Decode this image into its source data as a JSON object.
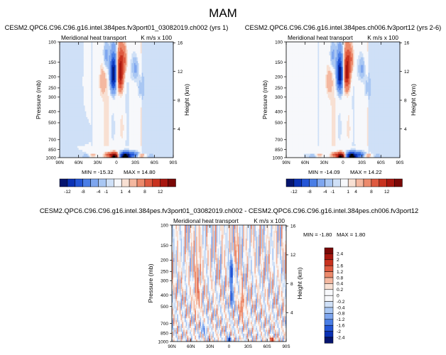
{
  "figure_title": "MAM",
  "chart_data": [
    {
      "type": "heatmap",
      "title": "CESM2.QPC6.C96.C96.g16.intel.384pes.fv3port01_03082019.ch002 (yrs 1)",
      "left_string": "Meridional heat transport",
      "right_string": "K m/s x 100",
      "ylabel": "Pressure (mb)",
      "ylabel_right": "Height (km)",
      "x_ticks": [
        "90N",
        "60N",
        "30N",
        "0",
        "30S",
        "60S",
        "90S"
      ],
      "y_ticks": [
        "100",
        "150",
        "200",
        "250",
        "300",
        "400",
        "500",
        "700",
        "850",
        "1000"
      ],
      "height_ticks": [
        "16",
        "12",
        "8",
        "4"
      ],
      "min_label": "MIN = -15.32",
      "max_label": "MAX = 14.80",
      "min": -15.32,
      "max": 14.8,
      "features": [
        {
          "lat": -14,
          "p": 970,
          "value": -14,
          "name": "low-level negative core"
        },
        {
          "lat": 3,
          "p": 970,
          "value": 14,
          "name": "low-level positive core"
        },
        {
          "lat": -6,
          "p": 190,
          "value": 10,
          "name": "upper positive cell"
        },
        {
          "lat": 5,
          "p": 190,
          "value": -12,
          "name": "upper negative cell"
        }
      ]
    },
    {
      "type": "heatmap",
      "title": "CESM2.QPC6.C96.C96.g16.intel.384pes.ch006.fv3port12 (yrs 2-6)",
      "left_string": "Meridional heat transport",
      "right_string": "K m/s x 100",
      "ylabel": "Pressure (mb)",
      "ylabel_right": "Height (km)",
      "x_ticks": [
        "90N",
        "60N",
        "30N",
        "0",
        "30S",
        "60S",
        "90S"
      ],
      "y_ticks": [
        "100",
        "150",
        "200",
        "250",
        "300",
        "400",
        "500",
        "700",
        "850",
        "1000"
      ],
      "height_ticks": [
        "16",
        "12",
        "8",
        "4"
      ],
      "min_label": "MIN = -14.09",
      "max_label": "MAX = 14.22",
      "min": -14.09,
      "max": 14.22,
      "features": [
        {
          "lat": -14,
          "p": 970,
          "value": -13,
          "name": "low-level negative core"
        },
        {
          "lat": 3,
          "p": 970,
          "value": 13,
          "name": "low-level positive core"
        },
        {
          "lat": -6,
          "p": 190,
          "value": 9,
          "name": "upper positive cell"
        },
        {
          "lat": 5,
          "p": 190,
          "value": -11,
          "name": "upper negative cell"
        }
      ]
    },
    {
      "type": "heatmap",
      "title": "CESM2.QPC6.C96.C96.g16.intel.384pes.fv3port01_03082019.ch002 - CESM2.QPC6.C96.C96.g16.intel.384pes.ch006.fv3port12",
      "left_string": "Meridional heat transport",
      "right_string": "K m/s x 100",
      "ylabel": "Pressure (mb)",
      "ylabel_right": "Height (km)",
      "x_ticks": [
        "90N",
        "60N",
        "30N",
        "0",
        "30S",
        "60S",
        "90S"
      ],
      "y_ticks": [
        "100",
        "150",
        "200",
        "250",
        "300",
        "400",
        "500",
        "700",
        "850",
        "1000"
      ],
      "height_ticks": [
        "16",
        "12",
        "8",
        "4"
      ],
      "min_label": "MIN = -1.80",
      "max_label": "MAX =  1.80",
      "min": -1.8,
      "max": 1.8,
      "features": [
        {
          "lat": -4,
          "p": 250,
          "value": -1.8,
          "name": "upper negative streak"
        },
        {
          "lat": 0,
          "p": 960,
          "value": -1.6,
          "name": "surface negative core"
        },
        {
          "lat": -68,
          "p": 960,
          "value": 1.4,
          "name": "high-latitude positive patch"
        },
        {
          "lat": -20,
          "p": 500,
          "value": 0.6,
          "name": "mid positive filament"
        }
      ]
    }
  ],
  "colorbar_top": {
    "labels": [
      "-12",
      "-8",
      "-4",
      "-1",
      "1",
      "4",
      "8",
      "12"
    ],
    "colors": [
      "#05146e",
      "#0a31b4",
      "#2355d6",
      "#4a7ee6",
      "#7ea6ef",
      "#a9c7f3",
      "#cfe0f7",
      "#f7f8fb",
      "#f8e0d3",
      "#f4b8a0",
      "#ec8a6c",
      "#de5a40",
      "#c8321f",
      "#a8170f",
      "#7a0806"
    ]
  },
  "colorbar_diff": {
    "labels": [
      "2.4",
      "2",
      "1.6",
      "1.2",
      "0.8",
      "0.4",
      "0.2",
      "0",
      "-0.2",
      "-0.4",
      "-0.8",
      "-1.2",
      "-1.6",
      "-2",
      "-2.4"
    ],
    "colors": [
      "#7a0806",
      "#a8170f",
      "#c8321f",
      "#de5a40",
      "#ec8a6c",
      "#f4b8a0",
      "#f8e0d3",
      "#f7f8fb",
      "#f7f8fb",
      "#cfe0f7",
      "#a9c7f3",
      "#7ea6ef",
      "#4a7ee6",
      "#2355d6",
      "#0a31b4",
      "#05146e"
    ]
  }
}
